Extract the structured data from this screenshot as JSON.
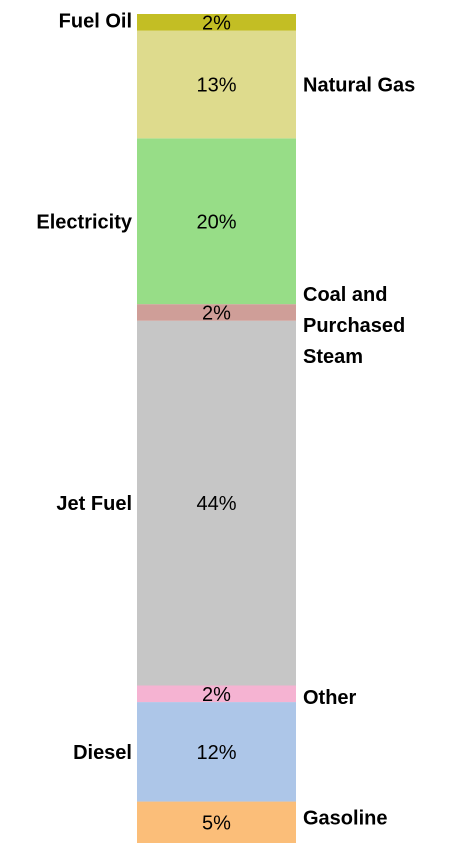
{
  "chart_data": {
    "type": "bar",
    "stacked": true,
    "orientation": "vertical",
    "unit": "%",
    "segments": [
      {
        "name": "Gasoline",
        "value": 5,
        "label": "5%",
        "color": "#fbbe79",
        "side": "right"
      },
      {
        "name": "Diesel",
        "value": 12,
        "label": "12%",
        "color": "#adc6e8",
        "side": "left"
      },
      {
        "name": "Other",
        "value": 2,
        "label": "2%",
        "color": "#f5b3d2",
        "side": "right"
      },
      {
        "name": "Jet Fuel",
        "value": 44,
        "label": "44%",
        "color": "#c6c6c6",
        "side": "left"
      },
      {
        "name": "Coal and Purchased Steam",
        "lines": [
          "Coal and",
          "Purchased",
          "Steam"
        ],
        "value": 2,
        "label": "2%",
        "color": "#cf9e98",
        "side": "right"
      },
      {
        "name": "Electricity",
        "value": 20,
        "label": "20%",
        "color": "#97dd87",
        "side": "left"
      },
      {
        "name": "Natural Gas",
        "value": 13,
        "label": "13%",
        "color": "#dedb8d",
        "side": "right"
      },
      {
        "name": "Fuel Oil",
        "value": 2,
        "label": "2%",
        "color": "#c3be24",
        "side": "left"
      }
    ]
  }
}
